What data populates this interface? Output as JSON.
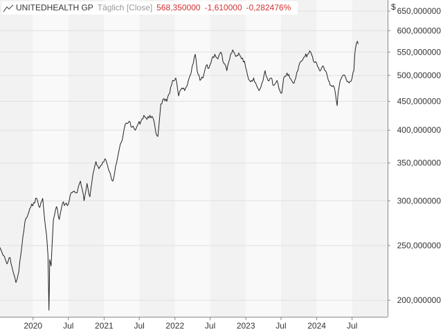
{
  "legend": {
    "name": "UNITEDHEALTH GP",
    "mode": "Täglich [Close]",
    "price": "568,350000",
    "change_abs": "-1,610000",
    "change_pct": "-0,282476%"
  },
  "colors": {
    "line": "#222222",
    "change": "#d03030",
    "band_light": "#f2f2f2",
    "band_white": "#f9f9f9",
    "grid": "#e0e0e0",
    "axis": "#888888"
  },
  "chart_data": {
    "type": "line",
    "title": "UNITEDHEALTH GP",
    "subtitle": "Täglich [Close]",
    "y_scale": "log",
    "ylim": [
      187,
      680
    ],
    "y_unit": "$",
    "y_ticks": [
      200,
      250,
      300,
      350,
      400,
      450,
      500,
      550,
      600,
      650
    ],
    "y_tick_labels": [
      "200,000000",
      "250,000000",
      "300,000000",
      "350,000000",
      "400,000000",
      "450,000000",
      "500,000000",
      "550,000000",
      "600,000000",
      "650,000000"
    ],
    "x_range": [
      "2019-07-15",
      "2024-12-31"
    ],
    "x_ticks": [
      {
        "date": "2020-01-01",
        "label": "2020"
      },
      {
        "date": "2020-07-01",
        "label": "Jul"
      },
      {
        "date": "2021-01-01",
        "label": "2021"
      },
      {
        "date": "2021-07-01",
        "label": "Jul"
      },
      {
        "date": "2022-01-01",
        "label": "2022"
      },
      {
        "date": "2022-07-01",
        "label": "Jul"
      },
      {
        "date": "2023-01-01",
        "label": "2023"
      },
      {
        "date": "2023-07-01",
        "label": "Jul"
      },
      {
        "date": "2024-01-01",
        "label": "2024"
      },
      {
        "date": "2024-07-01",
        "label": "Jul"
      }
    ],
    "grid": true,
    "series": [
      {
        "name": "UNITEDHEALTH GP",
        "points": [
          [
            "2019-07-15",
            248
          ],
          [
            "2019-08-01",
            240
          ],
          [
            "2019-08-20",
            232
          ],
          [
            "2019-09-05",
            238
          ],
          [
            "2019-09-20",
            225
          ],
          [
            "2019-10-05",
            215
          ],
          [
            "2019-10-20",
            225
          ],
          [
            "2019-11-05",
            250
          ],
          [
            "2019-11-20",
            275
          ],
          [
            "2019-12-05",
            283
          ],
          [
            "2019-12-20",
            292
          ],
          [
            "2020-01-05",
            298
          ],
          [
            "2020-01-20",
            303
          ],
          [
            "2020-02-05",
            292
          ],
          [
            "2020-02-20",
            303
          ],
          [
            "2020-03-01",
            278
          ],
          [
            "2020-03-10",
            262
          ],
          [
            "2020-03-18",
            240
          ],
          [
            "2020-03-23",
            192
          ],
          [
            "2020-03-27",
            236
          ],
          [
            "2020-04-03",
            230
          ],
          [
            "2020-04-15",
            278
          ],
          [
            "2020-05-01",
            293
          ],
          [
            "2020-05-15",
            278
          ],
          [
            "2020-06-01",
            297
          ],
          [
            "2020-06-15",
            296
          ],
          [
            "2020-07-01",
            296
          ],
          [
            "2020-07-15",
            310
          ],
          [
            "2020-08-01",
            312
          ],
          [
            "2020-08-15",
            310
          ],
          [
            "2020-09-01",
            325
          ],
          [
            "2020-09-20",
            300
          ],
          [
            "2020-10-05",
            322
          ],
          [
            "2020-10-20",
            305
          ],
          [
            "2020-11-05",
            335
          ],
          [
            "2020-11-20",
            352
          ],
          [
            "2020-12-05",
            342
          ],
          [
            "2020-12-20",
            347
          ],
          [
            "2021-01-05",
            356
          ],
          [
            "2021-01-20",
            345
          ],
          [
            "2021-02-01",
            336
          ],
          [
            "2021-02-15",
            325
          ],
          [
            "2021-03-01",
            345
          ],
          [
            "2021-03-20",
            370
          ],
          [
            "2021-04-05",
            385
          ],
          [
            "2021-04-20",
            410
          ],
          [
            "2021-05-10",
            415
          ],
          [
            "2021-05-25",
            405
          ],
          [
            "2021-06-10",
            400
          ],
          [
            "2021-06-25",
            410
          ],
          [
            "2021-07-10",
            415
          ],
          [
            "2021-07-25",
            425
          ],
          [
            "2021-08-10",
            418
          ],
          [
            "2021-08-25",
            425
          ],
          [
            "2021-09-10",
            420
          ],
          [
            "2021-09-25",
            395
          ],
          [
            "2021-10-05",
            390
          ],
          [
            "2021-10-20",
            445
          ],
          [
            "2021-11-05",
            455
          ],
          [
            "2021-11-20",
            450
          ],
          [
            "2021-12-05",
            465
          ],
          [
            "2021-12-20",
            490
          ],
          [
            "2022-01-05",
            495
          ],
          [
            "2022-01-20",
            460
          ],
          [
            "2022-02-05",
            475
          ],
          [
            "2022-02-20",
            470
          ],
          [
            "2022-03-05",
            480
          ],
          [
            "2022-03-20",
            500
          ],
          [
            "2022-04-05",
            525
          ],
          [
            "2022-04-15",
            545
          ],
          [
            "2022-04-25",
            510
          ],
          [
            "2022-05-10",
            490
          ],
          [
            "2022-05-25",
            495
          ],
          [
            "2022-06-10",
            520
          ],
          [
            "2022-06-25",
            515
          ],
          [
            "2022-07-10",
            535
          ],
          [
            "2022-07-25",
            545
          ],
          [
            "2022-08-10",
            535
          ],
          [
            "2022-08-25",
            550
          ],
          [
            "2022-09-10",
            525
          ],
          [
            "2022-09-25",
            510
          ],
          [
            "2022-10-10",
            535
          ],
          [
            "2022-10-25",
            555
          ],
          [
            "2022-11-10",
            540
          ],
          [
            "2022-11-25",
            548
          ],
          [
            "2022-12-10",
            535
          ],
          [
            "2022-12-25",
            530
          ],
          [
            "2023-01-10",
            500
          ],
          [
            "2023-01-25",
            487
          ],
          [
            "2023-02-10",
            495
          ],
          [
            "2023-02-25",
            480
          ],
          [
            "2023-03-10",
            470
          ],
          [
            "2023-03-25",
            485
          ],
          [
            "2023-04-10",
            510
          ],
          [
            "2023-04-25",
            490
          ],
          [
            "2023-05-10",
            495
          ],
          [
            "2023-05-25",
            480
          ],
          [
            "2023-06-10",
            490
          ],
          [
            "2023-06-25",
            470
          ],
          [
            "2023-07-05",
            465
          ],
          [
            "2023-07-15",
            495
          ],
          [
            "2023-08-01",
            505
          ],
          [
            "2023-08-15",
            495
          ],
          [
            "2023-09-01",
            485
          ],
          [
            "2023-09-15",
            495
          ],
          [
            "2023-10-01",
            520
          ],
          [
            "2023-10-15",
            530
          ],
          [
            "2023-11-01",
            540
          ],
          [
            "2023-11-15",
            545
          ],
          [
            "2023-12-01",
            550
          ],
          [
            "2023-12-15",
            530
          ],
          [
            "2024-01-01",
            525
          ],
          [
            "2024-01-15",
            510
          ],
          [
            "2024-02-01",
            520
          ],
          [
            "2024-02-15",
            510
          ],
          [
            "2024-03-01",
            490
          ],
          [
            "2024-03-15",
            480
          ],
          [
            "2024-04-01",
            475
          ],
          [
            "2024-04-15",
            442
          ],
          [
            "2024-04-20",
            465
          ],
          [
            "2024-05-01",
            490
          ],
          [
            "2024-05-15",
            500
          ],
          [
            "2024-06-01",
            492
          ],
          [
            "2024-06-15",
            485
          ],
          [
            "2024-07-01",
            495
          ],
          [
            "2024-07-10",
            510
          ],
          [
            "2024-07-15",
            545
          ],
          [
            "2024-07-20",
            562
          ],
          [
            "2024-07-25",
            572
          ],
          [
            "2024-08-01",
            568.35
          ]
        ]
      }
    ]
  }
}
